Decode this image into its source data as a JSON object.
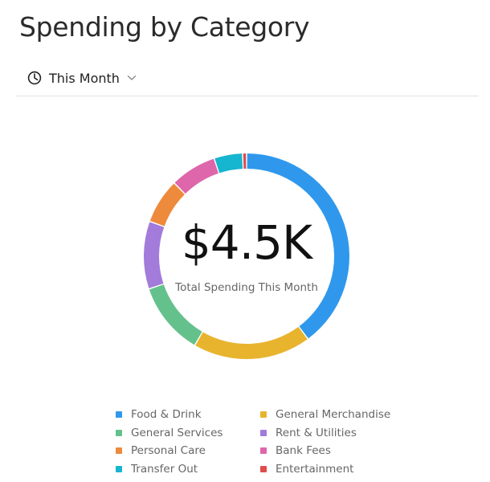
{
  "page": {
    "title": "Spending by Category"
  },
  "period": {
    "label": "This Month"
  },
  "summary": {
    "total": "$4.5K",
    "caption": "Total Spending This Month"
  },
  "colors": {
    "food_drink": "#2F98EC",
    "general_merchandise": "#E8B42E",
    "general_services": "#65C18C",
    "rent_utilities": "#A27BDB",
    "personal_care": "#EE8A3C",
    "bank_fees": "#DE66AB",
    "transfer_out": "#16B5D0",
    "entertainment": "#E04C4C"
  },
  "chart_data": {
    "type": "pie",
    "variant": "donut",
    "unit": "share",
    "center_label": "$4.5K",
    "center_caption": "Total Spending This Month",
    "legend_position": "bottom",
    "series": [
      {
        "name": "Food & Drink",
        "value": 0.382,
        "color": "#2F98EC"
      },
      {
        "name": "General Merchandise",
        "value": 0.178,
        "color": "#E8B42E"
      },
      {
        "name": "General Services",
        "value": 0.11,
        "color": "#65C18C"
      },
      {
        "name": "Rent & Utilities",
        "value": 0.102,
        "color": "#A27BDB"
      },
      {
        "name": "Personal Care",
        "value": 0.068,
        "color": "#EE8A3C"
      },
      {
        "name": "Bank Fees",
        "value": 0.07,
        "color": "#DE66AB"
      },
      {
        "name": "Transfer Out",
        "value": 0.043,
        "color": "#16B5D0"
      },
      {
        "name": "Entertainment",
        "value": 0.006,
        "color": "#E04C4C"
      }
    ],
    "legend_order": [
      "Food & Drink",
      "General Merchandise",
      "General Services",
      "Rent & Utilities",
      "Personal Care",
      "Bank Fees",
      "Transfer Out",
      "Entertainment"
    ]
  }
}
